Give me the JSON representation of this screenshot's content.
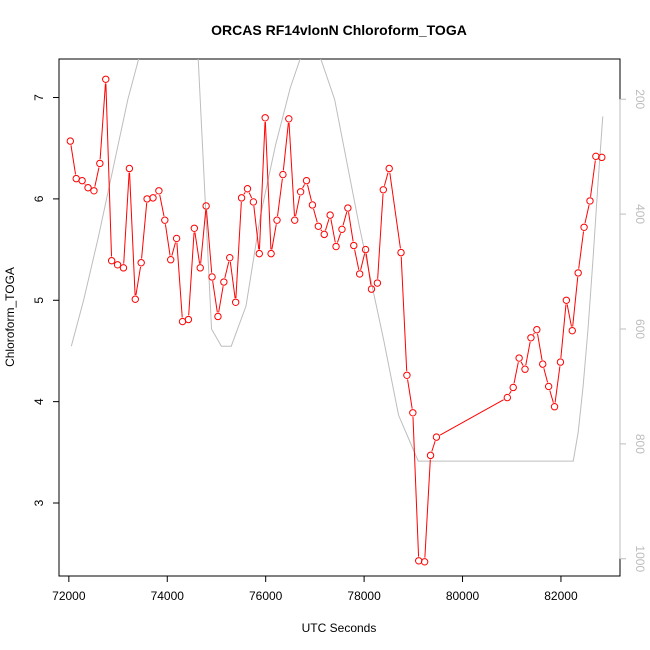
{
  "chart_data": {
    "type": "line",
    "title": "ORCAS RF14vlonN Chloroform_TOGA",
    "xlabel": "UTC Seconds",
    "ylabel": "Chloroform_TOGA",
    "xlim": [
      71800,
      83200
    ],
    "ylim": [
      2.28,
      7.38
    ],
    "y2lim": [
      1030,
      130
    ],
    "x_ticks": [
      72000,
      74000,
      76000,
      78000,
      80000,
      82000
    ],
    "y_ticks": [
      3,
      4,
      5,
      6,
      7
    ],
    "y2_ticks": [
      200,
      400,
      600,
      800,
      1000
    ],
    "series": [
      {
        "role": "main",
        "color": "#ff0000",
        "marker": "open-circle",
        "x": [
          72030,
          72150,
          72270,
          72390,
          72510,
          72630,
          72750,
          72870,
          72990,
          73110,
          73230,
          73350,
          73470,
          73590,
          73710,
          73830,
          73950,
          74070,
          74190,
          74310,
          74430,
          74550,
          74670,
          74790,
          74910,
          75030,
          75150,
          75270,
          75390,
          75510,
          75630,
          75750,
          75870,
          75990,
          76110,
          76230,
          76350,
          76470,
          76590,
          76710,
          76830,
          76950,
          77070,
          77190,
          77310,
          77430,
          77550,
          77670,
          77790,
          77910,
          78030,
          78150,
          78270,
          78390,
          78510,
          78750,
          78870,
          78990,
          79110,
          79230,
          79350,
          79470,
          80910,
          81030,
          81150,
          81270,
          81390,
          81510,
          81630,
          81750,
          81870,
          81990,
          82110,
          82230,
          82350,
          82470,
          82590,
          82710,
          82830
        ],
        "y": [
          6.57,
          6.2,
          6.18,
          6.11,
          6.08,
          6.35,
          7.18,
          5.39,
          5.35,
          5.32,
          6.3,
          5.01,
          5.37,
          6.0,
          6.01,
          6.08,
          5.79,
          5.4,
          5.61,
          4.79,
          4.81,
          5.71,
          5.32,
          5.93,
          5.23,
          4.84,
          5.18,
          5.42,
          4.98,
          6.01,
          6.1,
          5.97,
          5.46,
          6.8,
          5.46,
          5.79,
          6.24,
          6.79,
          5.79,
          6.07,
          6.18,
          5.94,
          5.73,
          5.65,
          5.84,
          5.53,
          5.7,
          5.91,
          5.54,
          5.26,
          5.5,
          5.11,
          5.17,
          6.09,
          6.3,
          5.47,
          4.26,
          3.89,
          2.43,
          2.42,
          3.47,
          3.65,
          4.04,
          4.14,
          4.43,
          4.32,
          4.63,
          4.71,
          4.37,
          4.15,
          3.95,
          4.39,
          5.0,
          4.7,
          5.27,
          5.72,
          5.98,
          6.42,
          6.41
        ]
      },
      {
        "role": "secondary",
        "axis": "right",
        "color": "#bdbdbd",
        "x": [
          72050,
          72300,
          72600,
          72900,
          73200,
          73450,
          73600,
          73800,
          73950,
          74100,
          74300,
          74600,
          74900,
          75100,
          75300,
          75600,
          75900,
          76200,
          76500,
          76700,
          76850,
          77000,
          77400,
          77900,
          78400,
          78700,
          78900,
          79100,
          79500,
          80000,
          80500,
          81000,
          81500,
          82000,
          82150,
          82250,
          82350,
          82450,
          82550,
          82650,
          82750,
          82850
        ],
        "y": [
          630,
          550,
          440,
          320,
          200,
          120,
          100,
          80,
          80,
          80,
          80,
          80,
          600,
          630,
          630,
          560,
          400,
          280,
          180,
          130,
          100,
          100,
          200,
          420,
          620,
          750,
          790,
          830,
          830,
          830,
          830,
          830,
          830,
          830,
          830,
          830,
          780,
          700,
          600,
          480,
          350,
          230
        ]
      }
    ]
  }
}
